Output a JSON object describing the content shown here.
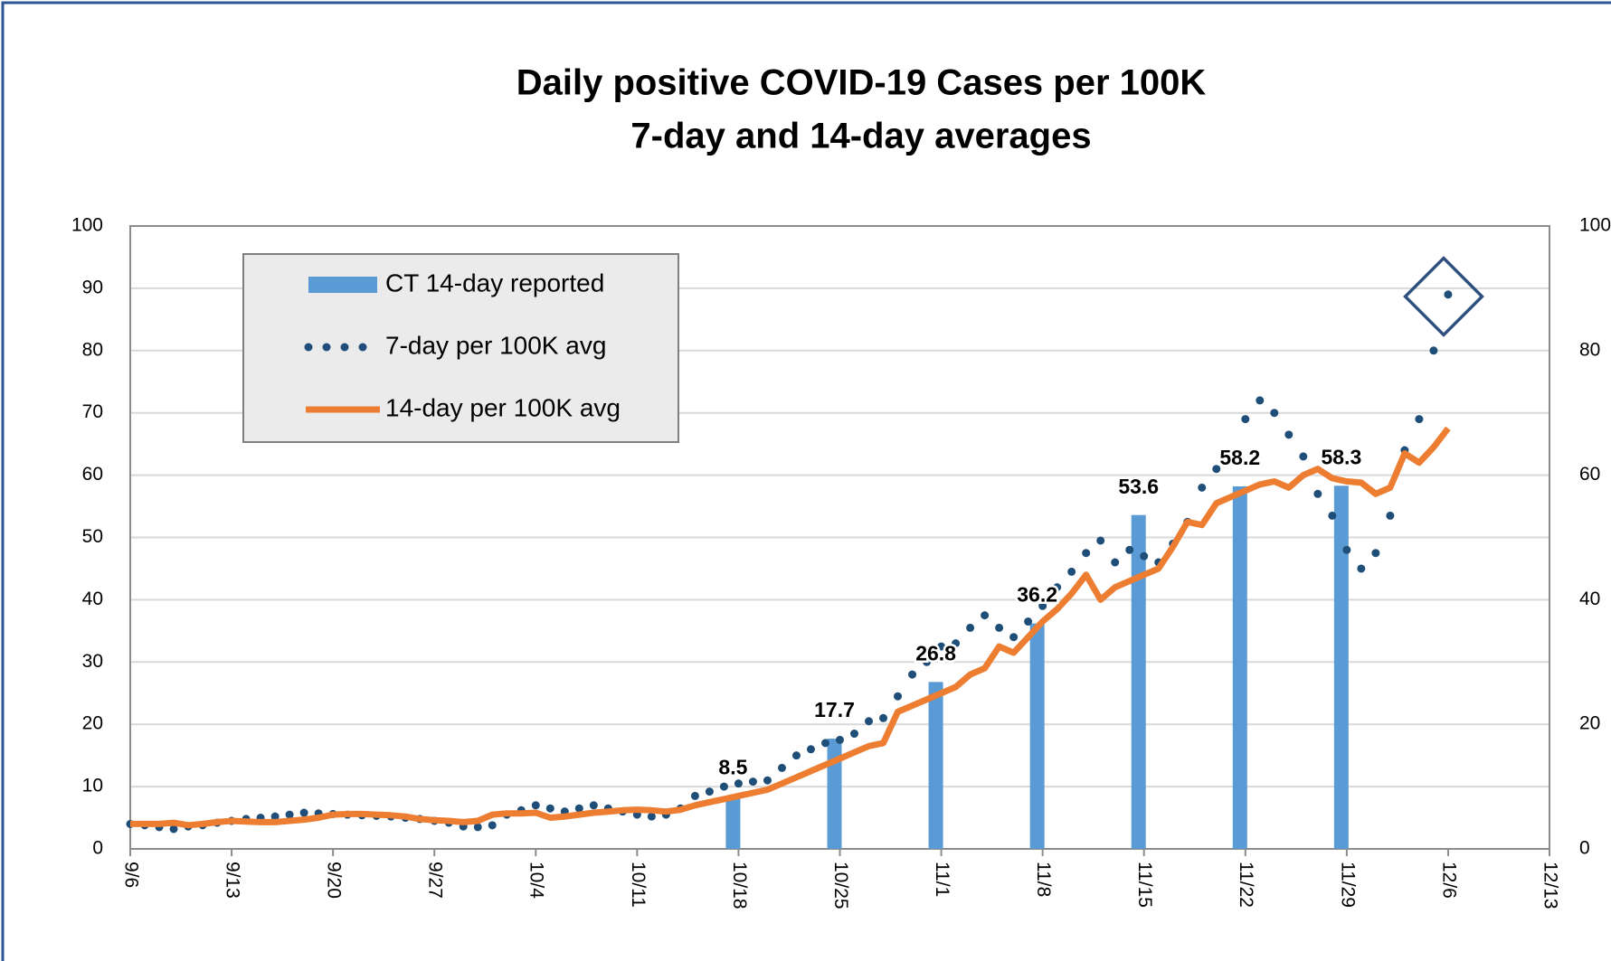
{
  "chart_data": {
    "type": "combo",
    "title": "Daily positive COVID-19 Cases per 100K",
    "subtitle": "7-day and 14-day averages",
    "categories": [
      "9/6",
      null,
      null,
      null,
      null,
      null,
      null,
      "9/13",
      null,
      null,
      null,
      null,
      null,
      null,
      "9/20",
      null,
      null,
      null,
      null,
      null,
      null,
      "9/27",
      null,
      null,
      null,
      null,
      null,
      null,
      "10/4",
      null,
      null,
      null,
      null,
      null,
      null,
      "10/11",
      null,
      null,
      null,
      null,
      null,
      null,
      "10/18",
      null,
      null,
      null,
      null,
      null,
      null,
      "10/25",
      null,
      null,
      null,
      null,
      null,
      null,
      "11/1",
      null,
      null,
      null,
      null,
      null,
      null,
      "11/8",
      null,
      null,
      null,
      null,
      null,
      null,
      "11/15",
      null,
      null,
      null,
      null,
      null,
      null,
      "11/22",
      null,
      null,
      null,
      null,
      null,
      null,
      "11/29",
      null,
      null,
      null,
      null,
      null,
      null,
      "12/6",
      null,
      null,
      null,
      null,
      null,
      null,
      "12/13"
    ],
    "series": [
      {
        "name": "CT 14-day reported",
        "kind": "bar",
        "color": "#5b9bd5",
        "values": [
          null,
          null,
          null,
          null,
          null,
          null,
          null,
          null,
          null,
          null,
          null,
          null,
          null,
          null,
          null,
          null,
          null,
          null,
          null,
          null,
          null,
          null,
          null,
          null,
          null,
          null,
          null,
          null,
          null,
          null,
          null,
          null,
          null,
          null,
          null,
          null,
          null,
          null,
          null,
          null,
          null,
          null,
          8.5,
          null,
          null,
          null,
          null,
          null,
          null,
          17.7,
          null,
          null,
          null,
          null,
          null,
          null,
          26.8,
          null,
          null,
          null,
          null,
          null,
          null,
          36.2,
          null,
          null,
          null,
          null,
          null,
          null,
          53.6,
          null,
          null,
          null,
          null,
          null,
          null,
          58.2,
          null,
          null,
          null,
          null,
          null,
          null,
          58.3,
          null,
          null,
          null,
          null,
          null,
          null,
          null,
          null,
          null,
          null,
          null,
          null,
          null,
          null
        ]
      },
      {
        "name": "7-day per 100K avg",
        "kind": "dots",
        "color": "#1f4e79",
        "values": [
          4,
          3.8,
          3.5,
          3.2,
          3.6,
          3.8,
          4.2,
          4.5,
          4.8,
          5,
          5.2,
          5.5,
          5.8,
          5.7,
          5.6,
          5.5,
          5.4,
          5.3,
          5.2,
          5,
          4.8,
          4.5,
          4.2,
          3.6,
          3.5,
          3.8,
          5.5,
          6.2,
          7,
          6.5,
          6,
          6.5,
          7,
          6.5,
          6,
          5.5,
          5.2,
          5.5,
          6.5,
          8.5,
          9.2,
          10,
          10.5,
          10.8,
          11,
          13,
          15,
          16,
          17,
          17.5,
          18.5,
          20.5,
          21,
          24.5,
          28,
          30,
          32.5,
          33,
          35.5,
          37.5,
          35.5,
          34,
          36.5,
          39,
          42,
          44.5,
          47.5,
          49.5,
          46,
          48,
          47,
          46,
          49,
          52.5,
          58,
          61,
          63.5,
          69,
          72,
          70,
          66.5,
          63,
          57,
          53.5,
          48,
          45,
          47.5,
          53.5,
          64,
          69,
          80,
          89,
          null,
          null,
          null,
          null,
          null,
          null,
          null
        ]
      },
      {
        "name": "14-day per 100K avg",
        "kind": "line",
        "color": "#ed7d31",
        "values": [
          4,
          4,
          4,
          4.2,
          3.8,
          4,
          4.3,
          4.5,
          4.4,
          4.3,
          4.3,
          4.5,
          4.7,
          5,
          5.5,
          5.6,
          5.6,
          5.5,
          5.4,
          5.2,
          4.8,
          4.6,
          4.5,
          4.3,
          4.5,
          5.5,
          5.7,
          5.7,
          5.8,
          5,
          5.2,
          5.5,
          5.8,
          6,
          6.2,
          6.3,
          6.2,
          6,
          6.3,
          7,
          7.5,
          8,
          8.5,
          9,
          9.5,
          10.5,
          11.5,
          12.5,
          13.5,
          14.5,
          15.5,
          16.5,
          17,
          22,
          23,
          24,
          25,
          26,
          28,
          29,
          32.5,
          31.5,
          34,
          36.5,
          38.5,
          41,
          44,
          40,
          42,
          43,
          44,
          45,
          48.5,
          52.5,
          52,
          55.5,
          56.5,
          57.5,
          58.5,
          59,
          58,
          60,
          61,
          59.5,
          59,
          58.8,
          57,
          58,
          63.5,
          62,
          64.5,
          67.5,
          null,
          null,
          null,
          null,
          null,
          null,
          null
        ]
      }
    ],
    "ylim": [
      0,
      100
    ],
    "yticks": [
      0,
      10,
      20,
      30,
      40,
      50,
      60,
      70,
      80,
      90,
      100
    ],
    "y2lim": [
      0,
      100
    ],
    "y2ticks": [
      0,
      20,
      40,
      60,
      80,
      100
    ],
    "grid": true,
    "legend": "upper left"
  }
}
